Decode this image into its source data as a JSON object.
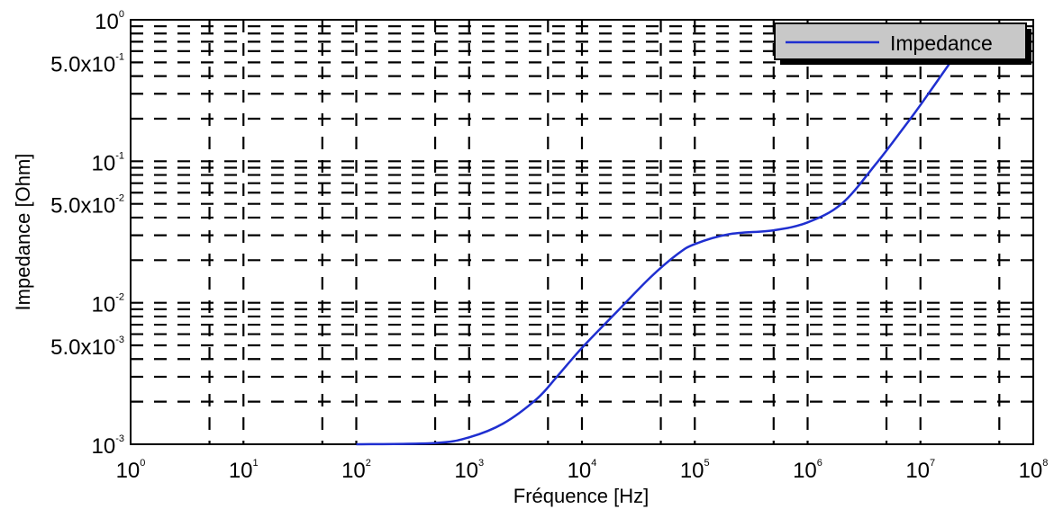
{
  "chart_data": {
    "type": "line",
    "xlabel": "Fréquence [Hz]",
    "ylabel": "Impedance [Ohm]",
    "x_scale": "log",
    "y_scale": "log",
    "xlim": [
      1,
      100000000
    ],
    "ylim": [
      0.001,
      1
    ],
    "grid": true,
    "legend_position": "top-right",
    "x_ticks": [
      {
        "base": "10",
        "exp": "0"
      },
      {
        "base": "10",
        "exp": "1"
      },
      {
        "base": "10",
        "exp": "2"
      },
      {
        "base": "10",
        "exp": "3"
      },
      {
        "base": "10",
        "exp": "4"
      },
      {
        "base": "10",
        "exp": "5"
      },
      {
        "base": "10",
        "exp": "6"
      },
      {
        "base": "10",
        "exp": "7"
      },
      {
        "base": "10",
        "exp": "8"
      }
    ],
    "y_ticks": [
      {
        "base": "10",
        "exp": "0",
        "value": 1
      },
      {
        "base": "5.0x10",
        "exp": "-1",
        "value": 0.5
      },
      {
        "base": "10",
        "exp": "-1",
        "value": 0.1
      },
      {
        "base": "5.0x10",
        "exp": "-2",
        "value": 0.05
      },
      {
        "base": "10",
        "exp": "-2",
        "value": 0.01
      },
      {
        "base": "5.0x10",
        "exp": "-3",
        "value": 0.005
      },
      {
        "base": "10",
        "exp": "-3",
        "value": 0.001
      }
    ],
    "series": [
      {
        "name": "Impedance",
        "color": "#1f2fd0",
        "x": [
          100,
          500,
          1000,
          2000,
          4000,
          6000,
          10000,
          20000,
          40000,
          70000,
          100000,
          200000,
          500000,
          1000000,
          2000000,
          4000000,
          7000000,
          10000000,
          20000000
        ],
        "y": [
          0.001,
          0.00102,
          0.00112,
          0.0014,
          0.0021,
          0.003,
          0.0048,
          0.0085,
          0.015,
          0.022,
          0.026,
          0.0305,
          0.0325,
          0.037,
          0.05,
          0.095,
          0.17,
          0.25,
          0.55
        ]
      }
    ]
  }
}
